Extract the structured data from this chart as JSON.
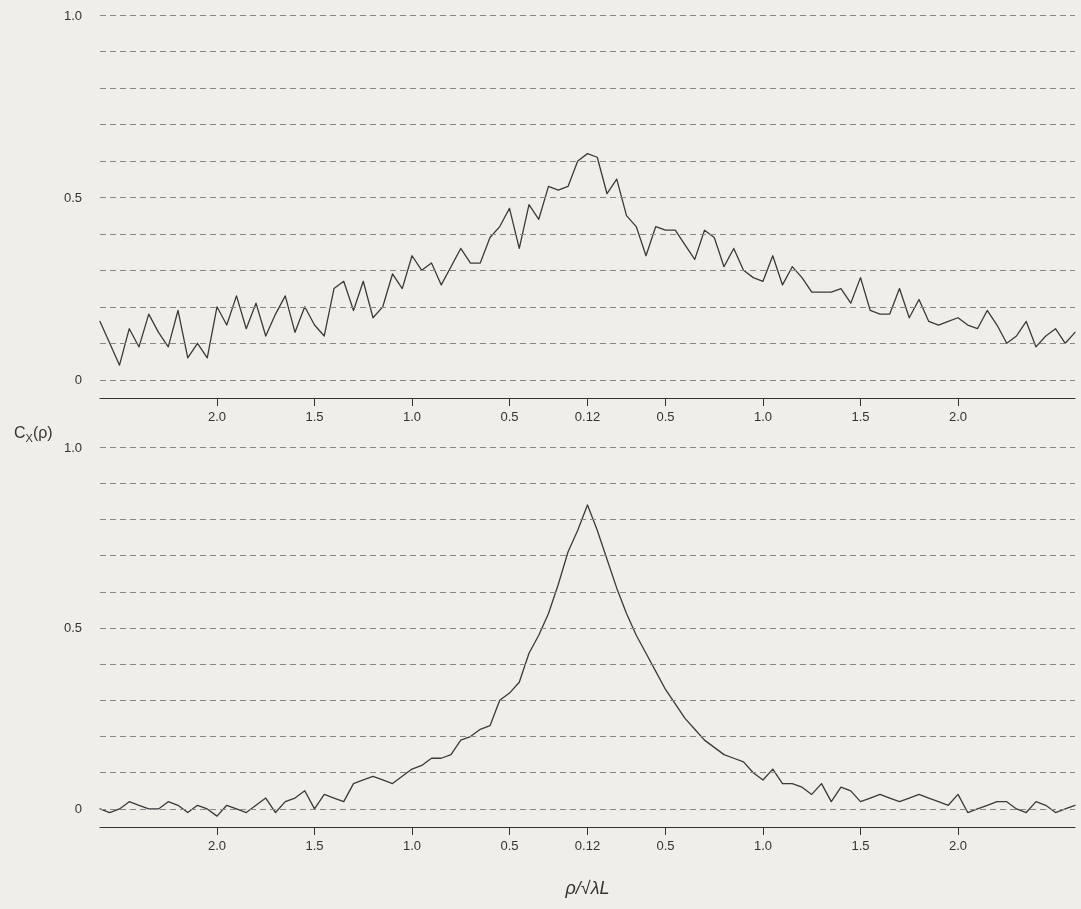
{
  "chart_data": [
    {
      "type": "line",
      "color": "#3a3a3a",
      "line_style": "solid",
      "marker": "none",
      "grid": "y",
      "categories": [
        null,
        null,
        null,
        null,
        null,
        null,
        null,
        null,
        null,
        null,
        null,
        null,
        "2.0",
        null,
        null,
        null,
        null,
        null,
        null,
        null,
        null,
        null,
        "1.5",
        null,
        null,
        null,
        null,
        null,
        null,
        null,
        null,
        null,
        "1.0",
        null,
        null,
        null,
        null,
        null,
        null,
        null,
        null,
        null,
        "0.5",
        null,
        null,
        null,
        null,
        null,
        null,
        null,
        "0.12",
        null,
        null,
        null,
        null,
        null,
        null,
        null,
        "0.5",
        null,
        null,
        null,
        null,
        null,
        null,
        null,
        null,
        null,
        "1.0",
        null,
        null,
        null,
        null,
        null,
        null,
        null,
        null,
        null,
        "1.5",
        null,
        null,
        null,
        null,
        null,
        null,
        null,
        null,
        null,
        "2.0",
        null,
        null,
        null,
        null,
        null,
        null,
        null,
        null,
        null,
        null,
        null,
        null
      ],
      "ylim": [
        -0.05,
        1.0
      ],
      "yticks": [
        {
          "value": 0,
          "label": "0"
        },
        {
          "value": 0.1,
          "label": null
        },
        {
          "value": 0.2,
          "label": null
        },
        {
          "value": 0.3,
          "label": null
        },
        {
          "value": 0.4,
          "label": null
        },
        {
          "value": 0.5,
          "label": "0.5"
        },
        {
          "value": 0.6,
          "label": null
        },
        {
          "value": 0.7,
          "label": null
        },
        {
          "value": 0.8,
          "label": null
        },
        {
          "value": 0.9,
          "label": null
        },
        {
          "value": 1,
          "label": "1.0"
        }
      ],
      "values": [
        0.16,
        0.1,
        0.04,
        0.14,
        0.09,
        0.18,
        0.13,
        0.09,
        0.19,
        0.06,
        0.1,
        0.06,
        0.2,
        0.15,
        0.23,
        0.14,
        0.21,
        0.12,
        0.18,
        0.23,
        0.13,
        0.2,
        0.15,
        0.12,
        0.25,
        0.27,
        0.19,
        0.27,
        0.17,
        0.2,
        0.29,
        0.25,
        0.34,
        0.3,
        0.32,
        0.26,
        0.31,
        0.36,
        0.32,
        0.32,
        0.39,
        0.42,
        0.47,
        0.36,
        0.48,
        0.44,
        0.53,
        0.52,
        0.53,
        0.6,
        0.62,
        0.61,
        0.51,
        0.55,
        0.45,
        0.42,
        0.34,
        0.42,
        0.41,
        0.41,
        0.37,
        0.33,
        0.41,
        0.39,
        0.31,
        0.36,
        0.3,
        0.28,
        0.27,
        0.34,
        0.26,
        0.31,
        0.28,
        0.24,
        0.24,
        0.24,
        0.25,
        0.21,
        0.28,
        0.19,
        0.18,
        0.18,
        0.25,
        0.17,
        0.22,
        0.16,
        0.15,
        0.16,
        0.17,
        0.15,
        0.14,
        0.19,
        0.15,
        0.1,
        0.12,
        0.16,
        0.09,
        0.12,
        0.14,
        0.1,
        0.13
      ]
    },
    {
      "type": "line",
      "color": "#3a3a3a",
      "line_style": "solid",
      "marker": "none",
      "grid": "y",
      "xlabel": "ρ/√λL",
      "ylabel": "C$_{X}$(ρ)",
      "categories": [
        null,
        null,
        null,
        null,
        null,
        null,
        null,
        null,
        null,
        null,
        null,
        null,
        "2.0",
        null,
        null,
        null,
        null,
        null,
        null,
        null,
        null,
        null,
        "1.5",
        null,
        null,
        null,
        null,
        null,
        null,
        null,
        null,
        null,
        "1.0",
        null,
        null,
        null,
        null,
        null,
        null,
        null,
        null,
        null,
        "0.5",
        null,
        null,
        null,
        null,
        null,
        null,
        null,
        "0.12",
        null,
        null,
        null,
        null,
        null,
        null,
        null,
        "0.5",
        null,
        null,
        null,
        null,
        null,
        null,
        null,
        null,
        null,
        "1.0",
        null,
        null,
        null,
        null,
        null,
        null,
        null,
        null,
        null,
        "1.5",
        null,
        null,
        null,
        null,
        null,
        null,
        null,
        null,
        null,
        "2.0",
        null,
        null,
        null,
        null,
        null,
        null,
        null,
        null,
        null,
        null,
        null,
        null
      ],
      "ylim": [
        -0.05,
        1.0
      ],
      "yticks": [
        {
          "value": 0,
          "label": "0"
        },
        {
          "value": 0.1,
          "label": null
        },
        {
          "value": 0.2,
          "label": null
        },
        {
          "value": 0.3,
          "label": null
        },
        {
          "value": 0.4,
          "label": null
        },
        {
          "value": 0.5,
          "label": "0.5"
        },
        {
          "value": 0.6,
          "label": null
        },
        {
          "value": 0.7,
          "label": null
        },
        {
          "value": 0.8,
          "label": null
        },
        {
          "value": 0.9,
          "label": null
        },
        {
          "value": 1,
          "label": "1.0"
        }
      ],
      "values": [
        0,
        -0.01,
        0,
        0.02,
        0.01,
        0,
        0,
        0.02,
        0.01,
        -0.01,
        0.01,
        0,
        -0.02,
        0.01,
        0,
        -0.01,
        0.01,
        0.03,
        -0.01,
        0.02,
        0.03,
        0.05,
        0,
        0.04,
        0.03,
        0.02,
        0.07,
        0.08,
        0.09,
        0.08,
        0.07,
        0.09,
        0.11,
        0.12,
        0.14,
        0.14,
        0.15,
        0.19,
        0.2,
        0.22,
        0.23,
        0.3,
        0.32,
        0.35,
        0.43,
        0.48,
        0.54,
        0.62,
        0.71,
        0.77,
        0.84,
        0.77,
        0.69,
        0.61,
        0.54,
        0.48,
        0.43,
        0.38,
        0.33,
        0.29,
        0.25,
        0.22,
        0.19,
        0.17,
        0.15,
        0.14,
        0.13,
        0.1,
        0.08,
        0.11,
        0.07,
        0.07,
        0.06,
        0.04,
        0.07,
        0.02,
        0.06,
        0.05,
        0.02,
        0.03,
        0.04,
        0.03,
        0.02,
        0.03,
        0.04,
        0.03,
        0.02,
        0.01,
        0.04,
        -0.01,
        0,
        0.01,
        0.02,
        0.02,
        0,
        -0.01,
        0.02,
        0.01,
        -0.01,
        0,
        0.01
      ]
    }
  ]
}
